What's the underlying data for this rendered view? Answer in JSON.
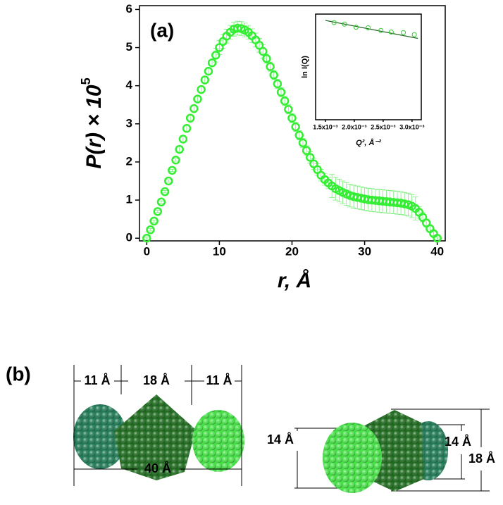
{
  "chart_data": [
    {
      "type": "scatter",
      "annotation": "(a)",
      "xlabel": "r, Å",
      "ylabel": {
        "text": "P(r) × 10",
        "superscript": "5"
      },
      "xlim": [
        -1,
        41.1
      ],
      "xticks": [
        0,
        10,
        20,
        30,
        40
      ],
      "ylim": [
        -0.07,
        6.1
      ],
      "yticks": [
        0,
        1,
        2,
        3,
        4,
        5,
        6
      ],
      "x": [
        0,
        0.5,
        1,
        1.5,
        2,
        2.5,
        3,
        3.5,
        4,
        4.5,
        5,
        5.5,
        6,
        6.5,
        7,
        7.5,
        8,
        8.5,
        9,
        9.5,
        10,
        10.5,
        11,
        11.5,
        12,
        12.5,
        13,
        13.5,
        14,
        14.5,
        15,
        15.5,
        16,
        16.5,
        17,
        17.5,
        18,
        18.5,
        19,
        19.5,
        20,
        20.5,
        21,
        21.5,
        22,
        22.5,
        23,
        23.5,
        24,
        24.5,
        25,
        25.5,
        26,
        26.5,
        27,
        27.5,
        28,
        28.5,
        29,
        29.5,
        30,
        30.5,
        31,
        31.5,
        32,
        32.5,
        33,
        33.5,
        34,
        34.5,
        35,
        35.5,
        36,
        36.5,
        37,
        37.5,
        38,
        38.5,
        39,
        39.5,
        40
      ],
      "series": [
        {
          "color": "#33ee33",
          "error_color": "#77ee77",
          "values": [
            0,
            0.22,
            0.45,
            0.7,
            0.95,
            1.22,
            1.5,
            1.78,
            2.05,
            2.33,
            2.6,
            2.88,
            3.15,
            3.4,
            3.65,
            3.9,
            4.15,
            4.38,
            4.6,
            4.8,
            5.0,
            5.16,
            5.3,
            5.4,
            5.48,
            5.51,
            5.5,
            5.46,
            5.4,
            5.31,
            5.2,
            5.06,
            4.9,
            4.71,
            4.5,
            4.28,
            4.05,
            3.83,
            3.6,
            3.38,
            3.15,
            2.92,
            2.7,
            2.5,
            2.3,
            2.12,
            1.95,
            1.8,
            1.65,
            1.54,
            1.45,
            1.37,
            1.3,
            1.25,
            1.2,
            1.16,
            1.12,
            1.09,
            1.07,
            1.05,
            1.03,
            1.01,
            1.0,
            0.99,
            0.98,
            0.97,
            0.96,
            0.95,
            0.94,
            0.93,
            0.92,
            0.9,
            0.88,
            0.84,
            0.78,
            0.68,
            0.55,
            0.4,
            0.25,
            0.12,
            0
          ],
          "errors": [
            0.03,
            0.03,
            0.03,
            0.03,
            0.03,
            0.03,
            0.03,
            0.03,
            0.03,
            0.08,
            0.08,
            0.08,
            0.08,
            0.08,
            0.08,
            0.08,
            0.08,
            0.08,
            0.08,
            0.18,
            0.18,
            0.18,
            0.18,
            0.18,
            0.18,
            0.18,
            0.18,
            0.18,
            0.18,
            0.18,
            0.18,
            0.18,
            0.18,
            0.12,
            0.12,
            0.12,
            0.12,
            0.12,
            0.12,
            0.12,
            0.12,
            0.12,
            0.12,
            0.12,
            0.12,
            0.15,
            0.15,
            0.15,
            0.15,
            0.15,
            0.15,
            0.3,
            0.3,
            0.3,
            0.3,
            0.3,
            0.3,
            0.3,
            0.3,
            0.3,
            0.3,
            0.3,
            0.3,
            0.3,
            0.3,
            0.3,
            0.3,
            0.3,
            0.3,
            0.3,
            0.3,
            0.3,
            0.3,
            0.3,
            0.3,
            0.15,
            0.12,
            0.1,
            0.08,
            0.05,
            0.03
          ]
        }
      ]
    },
    {
      "type": "scatter",
      "xlabel": "Q², Å⁻²",
      "ylabel": "ln I(Q)",
      "xlim": [
        0.00133,
        0.00316
      ],
      "xticks": [
        {
          "value": 0.0015,
          "label": "1.5x10⁻³"
        },
        {
          "value": 0.002,
          "label": "2.0x10⁻³"
        },
        {
          "value": 0.0025,
          "label": "2.5x10⁻³"
        },
        {
          "value": 0.003,
          "label": "3.0x10⁻³"
        }
      ],
      "ylim": [
        0,
        10
      ],
      "x": [
        0.00165,
        0.00183,
        0.00203,
        0.00224,
        0.00246,
        0.00264,
        0.00285,
        0.00304
      ],
      "series": [
        {
          "color": "#33cc33",
          "values": [
            9.2,
            9.05,
            8.75,
            8.7,
            8.45,
            8.3,
            8.25,
            8.05
          ]
        }
      ],
      "fit": {
        "color": "#226622",
        "x": [
          0.0015,
          0.0031
        ],
        "y": [
          9.4,
          7.7
        ]
      }
    }
  ],
  "panel_b": {
    "label": "(b)",
    "dimensions": [
      "11 Å",
      "18 Å",
      "11 Å",
      "40 Å",
      "14 Å",
      "14 Å",
      "18 Å"
    ]
  }
}
